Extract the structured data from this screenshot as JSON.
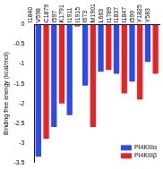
{
  "chart_data": {
    "type": "bar",
    "y_label": "Binding free energy (kcal/mol)",
    "categories": [
      "I1840",
      "V598",
      "C1879",
      "I597",
      "K1791",
      "I1911",
      "I1915",
      "I673",
      "M1901",
      "L663",
      "I1789",
      "I1837",
      "I1847",
      "I599",
      "Y1825",
      "Y583"
    ],
    "series": [
      {
        "name": "PI4KIIIα",
        "color": "#2b4bf2",
        "values": [
          -3.35,
          null,
          -2.6,
          null,
          -2.3,
          null,
          -1.55,
          null,
          -1.2,
          null,
          -1.25,
          null,
          -1.45,
          null,
          -0.95,
          null
        ]
      },
      {
        "name": "PI4KIIIβ",
        "color": "#f02020",
        "values": [
          null,
          -2.9,
          null,
          -2.0,
          null,
          -0.05,
          null,
          -2.6,
          null,
          -1.15,
          null,
          -1.75,
          null,
          -1.9,
          null,
          -1.25
        ]
      }
    ],
    "ylim": [
      -3.5,
      0
    ],
    "yticks": [
      -3.5,
      -3,
      -2.5,
      -2,
      -1.5,
      -1,
      -0.5,
      0
    ],
    "grid": false,
    "legend": "lower right"
  }
}
